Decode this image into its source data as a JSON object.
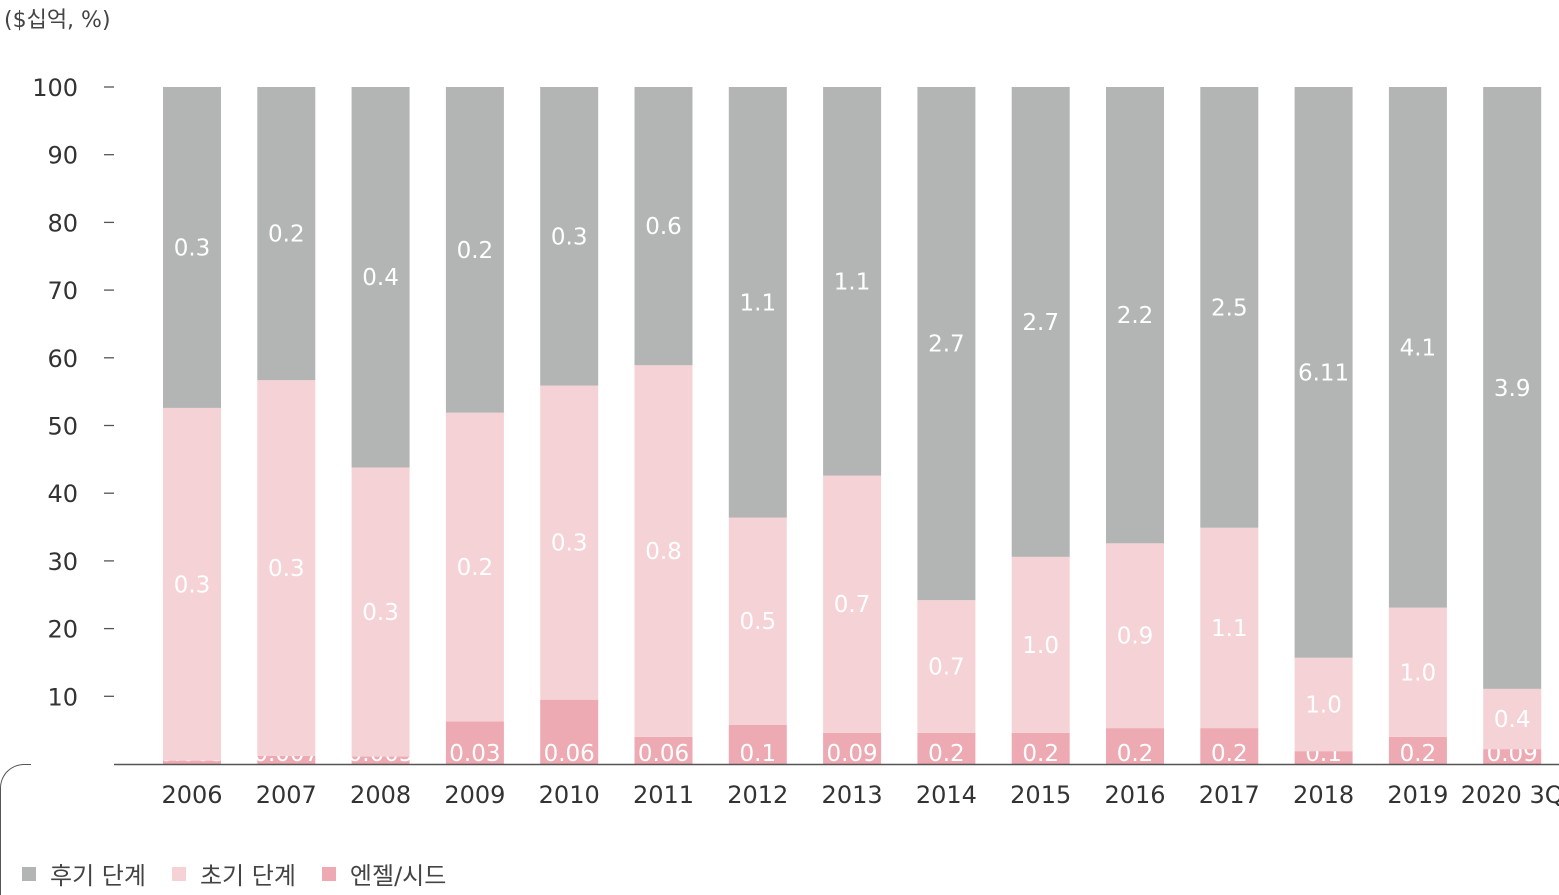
{
  "unit_label": "($십억, %)",
  "colors": {
    "late": "#b3b4b4",
    "early": "#f5d2d6",
    "angel": "#eeaab3"
  },
  "legend": [
    {
      "label": "후기 단계",
      "color": "#b3b4b4"
    },
    {
      "label": "초기 단계",
      "color": "#f5d2d6"
    },
    {
      "label": "엔젤/시드",
      "color": "#eeaab3"
    }
  ],
  "chart_data": {
    "type": "bar",
    "stacked": true,
    "y_unit": "%",
    "ylim": [
      0,
      100
    ],
    "yticks": [
      10,
      20,
      30,
      40,
      50,
      60,
      70,
      80,
      90,
      100
    ],
    "categories": [
      "2006",
      "2007",
      "2008",
      "2009",
      "2010",
      "2011",
      "2012",
      "2013",
      "2014",
      "2015",
      "2016",
      "2017",
      "2018",
      "2019",
      "2020 3Q"
    ],
    "series": [
      {
        "name": "엔젤/시드",
        "values": [
          0.5,
          1.2,
          1.1,
          6.3,
          9.5,
          4.0,
          5.8,
          4.6,
          4.6,
          4.6,
          5.3,
          5.3,
          1.9,
          4.0,
          2.2
        ],
        "labels": [
          "0.003",
          "0.007",
          "0.005",
          "0.03",
          "0.06",
          "0.06",
          "0.1",
          "0.09",
          "0.2",
          "0.2",
          "0.2",
          "0.2",
          "0.1",
          "0.2",
          "0.09"
        ]
      },
      {
        "name": "초기 단계",
        "values": [
          52.1,
          55.5,
          42.7,
          45.6,
          46.4,
          54.9,
          30.6,
          38.0,
          19.6,
          26.0,
          27.3,
          29.6,
          13.8,
          19.1,
          8.9
        ],
        "labels": [
          "0.3",
          "0.3",
          "0.3",
          "0.2",
          "0.3",
          "0.8",
          "0.5",
          "0.7",
          "0.7",
          "1.0",
          "0.9",
          "1.1",
          "1.0",
          "1.0",
          "0.4"
        ]
      },
      {
        "name": "후기 단계",
        "values": [
          47.4,
          43.3,
          56.2,
          48.1,
          44.1,
          41.1,
          63.6,
          57.4,
          75.8,
          69.4,
          67.4,
          65.1,
          84.3,
          76.9,
          88.9
        ],
        "labels": [
          "0.3",
          "0.2",
          "0.4",
          "0.2",
          "0.3",
          "0.6",
          "1.1",
          "1.1",
          "2.7",
          "2.7",
          "2.2",
          "2.5",
          "6.11",
          "4.1",
          "3.9"
        ]
      }
    ]
  }
}
